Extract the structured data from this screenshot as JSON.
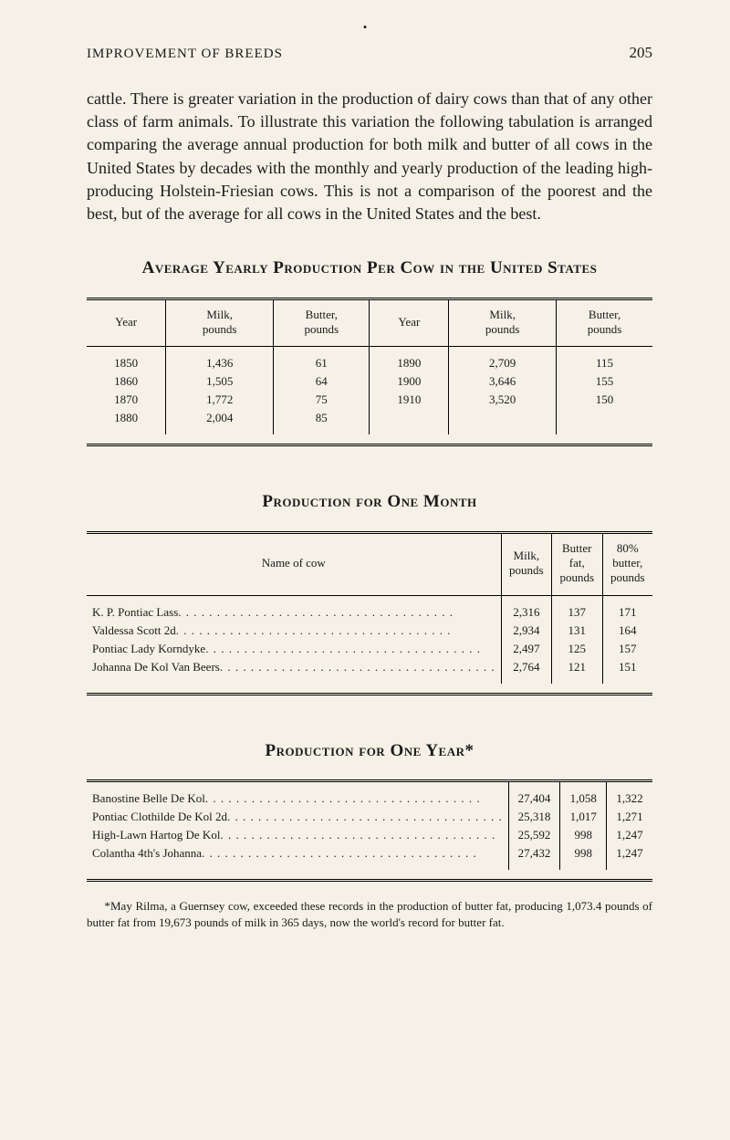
{
  "page": {
    "running_head": "IMPROVEMENT OF BREEDS",
    "page_number": "205",
    "body": "cattle. There is greater variation in the production of dairy cows than that of any other class of farm animals. To illustrate this variation the following tabulation is arranged comparing the average annual production for both milk and butter of all cows in the United States by decades with the monthly and yearly production of the leading high-producing Holstein-Friesian cows. This is not a comparison of the poorest and the best, but of the average for all cows in the United States and the best."
  },
  "table1": {
    "heading": "Average Yearly Production Per Cow in the United States",
    "columns": [
      "Year",
      "Milk,\npounds",
      "Butter,\npounds",
      "Year",
      "Milk,\npounds",
      "Butter,\npounds"
    ],
    "rows": [
      [
        "1850",
        "1,436",
        "61",
        "1890",
        "2,709",
        "115"
      ],
      [
        "1860",
        "1,505",
        "64",
        "1900",
        "3,646",
        "155"
      ],
      [
        "1870",
        "1,772",
        "75",
        "1910",
        "3,520",
        "150"
      ],
      [
        "1880",
        "2,004",
        "85",
        "",
        "",
        ""
      ]
    ]
  },
  "table2": {
    "heading": "Production for One Month",
    "columns": [
      "Name of cow",
      "Milk,\npounds",
      "Butter fat,\npounds",
      "80% butter,\npounds"
    ],
    "rows": [
      {
        "name": "K. P. Pontiac Lass",
        "c1": "2,316",
        "c2": "137",
        "c3": "171"
      },
      {
        "name": "Valdessa Scott 2d",
        "c1": "2,934",
        "c2": "131",
        "c3": "164"
      },
      {
        "name": "Pontiac Lady Korndyke",
        "c1": "2,497",
        "c2": "125",
        "c3": "157"
      },
      {
        "name": "Johanna De Kol Van Beers",
        "c1": "2,764",
        "c2": "121",
        "c3": "151"
      }
    ]
  },
  "table3": {
    "heading": "Production for One Year*",
    "rows": [
      {
        "name": "Banostine Belle De Kol",
        "c1": "27,404",
        "c2": "1,058",
        "c3": "1,322"
      },
      {
        "name": "Pontiac Clothilde De Kol 2d",
        "c1": "25,318",
        "c2": "1,017",
        "c3": "1,271"
      },
      {
        "name": "High-Lawn Hartog De Kol",
        "c1": "25,592",
        "c2": "998",
        "c3": "1,247"
      },
      {
        "name": "Colantha 4th's Johanna",
        "c1": "27,432",
        "c2": "998",
        "c3": "1,247"
      }
    ]
  },
  "footnote": "*May Rilma, a Guernsey cow, exceeded these records in the production of butter fat, producing 1,073.4 pounds of butter fat from 19,673 pounds of milk in 365 days, now the world's record for butter fat.",
  "style": {
    "bg": "#f5f1e6",
    "text": "#1a1a1a",
    "body_fontsize": 18,
    "table_fontsize": 13,
    "heading_fontsize": 19
  }
}
